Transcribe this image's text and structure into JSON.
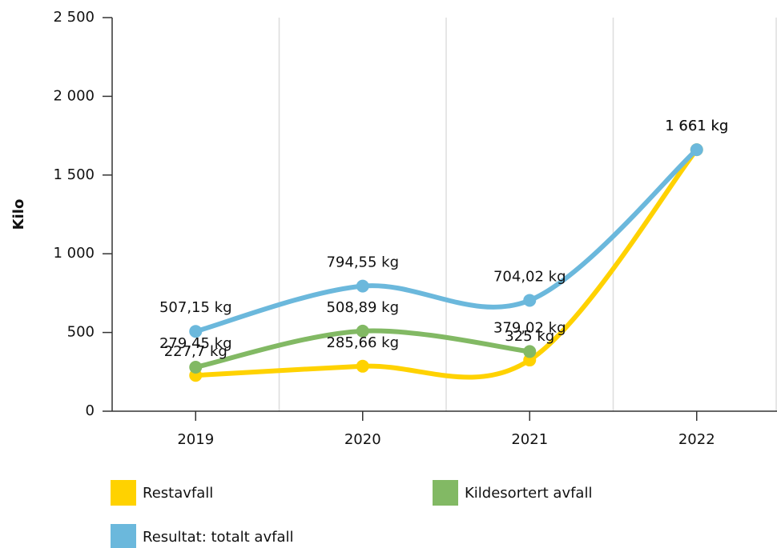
{
  "chart_data": {
    "type": "line",
    "y_label": "Kilo",
    "categories": [
      "2019",
      "2020",
      "2021",
      "2022"
    ],
    "series": [
      {
        "name": "Restavfall",
        "color": "#ffd200",
        "values": [
          227.7,
          285.66,
          325,
          1661
        ],
        "value_labels": [
          "227,7 kg",
          "285,66 kg",
          "325 kg",
          "1 661 kg"
        ]
      },
      {
        "name": "Kildesortert avfall",
        "color": "#82b964",
        "values": [
          279.45,
          508.89,
          379.02,
          null
        ],
        "value_labels": [
          "279,45 kg",
          "508,89 kg",
          "379,02 kg",
          null
        ]
      },
      {
        "name": "Resultat: totalt avfall",
        "color": "#6bb8dc",
        "values": [
          507.15,
          794.55,
          704.02,
          1661
        ],
        "value_labels": [
          "507,15 kg",
          "794,55 kg",
          "704,02 kg",
          "1 661 kg"
        ]
      }
    ],
    "ylim": [
      0,
      2500
    ],
    "yticks": [
      0,
      500,
      {
        "value": 1000,
        "label": "1 000"
      },
      {
        "value": 1500,
        "label": "1 500"
      },
      {
        "value": 2000,
        "label": "2 000"
      },
      {
        "value": 2500,
        "label": "2 500"
      }
    ],
    "grid": true
  }
}
